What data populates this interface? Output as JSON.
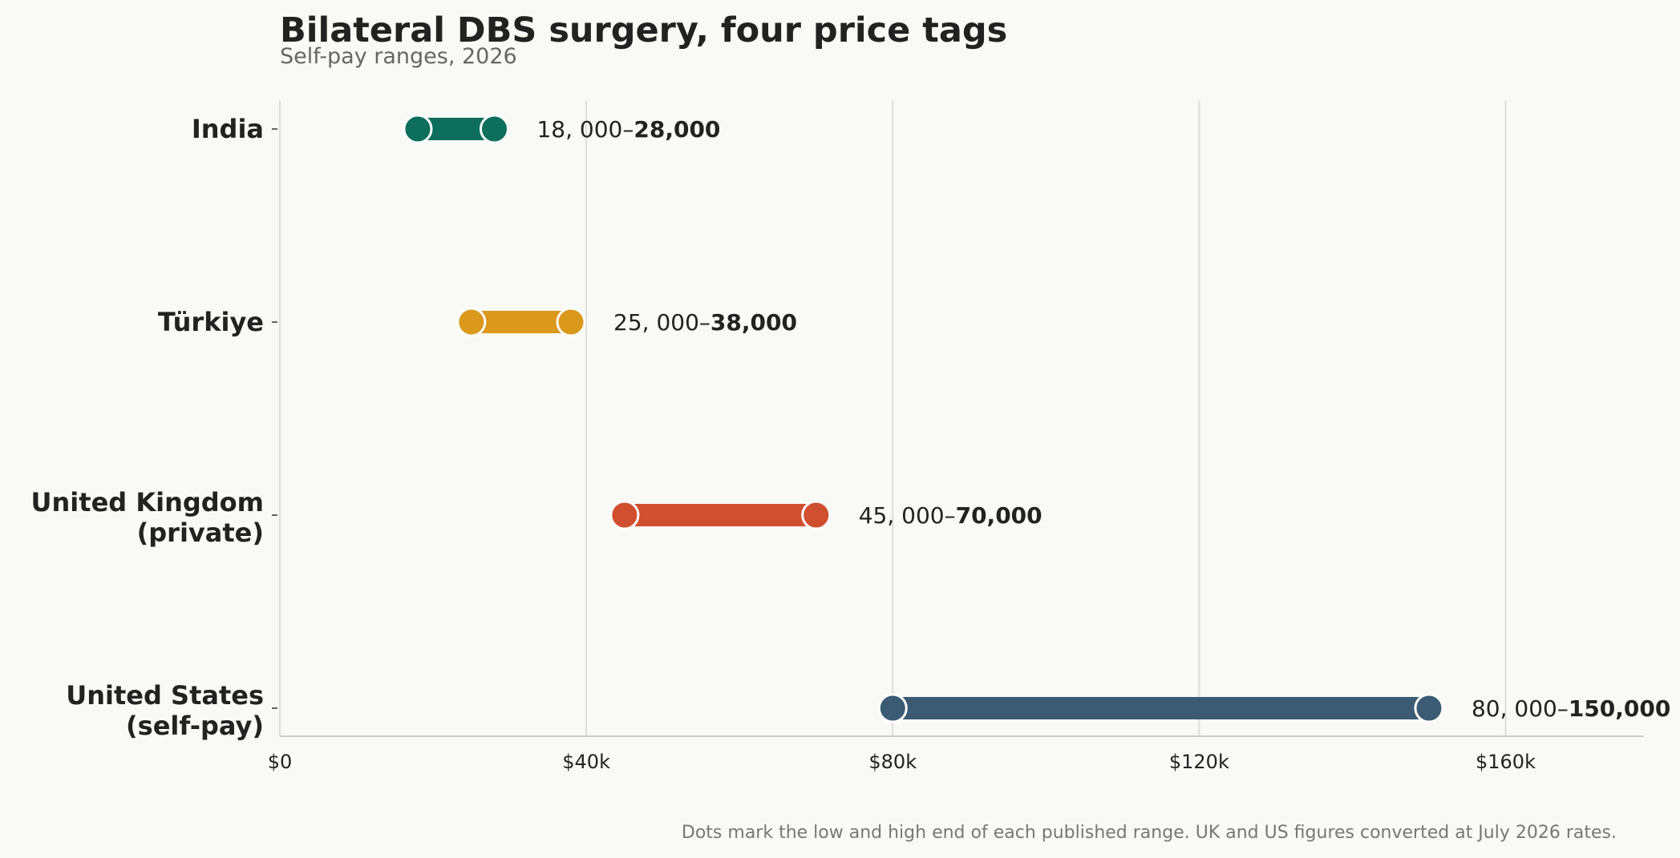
{
  "chart_data": {
    "type": "range",
    "title": "Bilateral DBS surgery, four price tags",
    "subtitle": "Self-pay ranges, 2026",
    "xlim": [
      0,
      178000
    ],
    "x_ticks": [
      0,
      40000,
      80000,
      120000,
      160000
    ],
    "x_tick_labels": [
      "$0",
      "$40k",
      "$80k",
      "$120k",
      "$160k"
    ],
    "grid": "vertical",
    "series": [
      {
        "category": [
          "India"
        ],
        "low": 18000,
        "high": 28000,
        "label_low": "18, 000–",
        "label_high": "28,000",
        "color": "#0e6e5c"
      },
      {
        "category": [
          "Türkiye"
        ],
        "low": 25000,
        "high": 38000,
        "label_low": "25, 000–",
        "label_high": "38,000",
        "color": "#da981d"
      },
      {
        "category": [
          "United Kingdom",
          "(private)"
        ],
        "low": 45000,
        "high": 70000,
        "label_low": "45, 000–",
        "label_high": "70,000",
        "color": "#d04f2f"
      },
      {
        "category": [
          "United States",
          "(self-pay)"
        ],
        "low": 80000,
        "high": 150000,
        "label_low": "80, 000–",
        "label_high": "150,000",
        "color": "#3b5a74"
      }
    ],
    "footnote": "Dots mark the low and high end of each published range. UK and US figures converted at July 2026 rates."
  }
}
